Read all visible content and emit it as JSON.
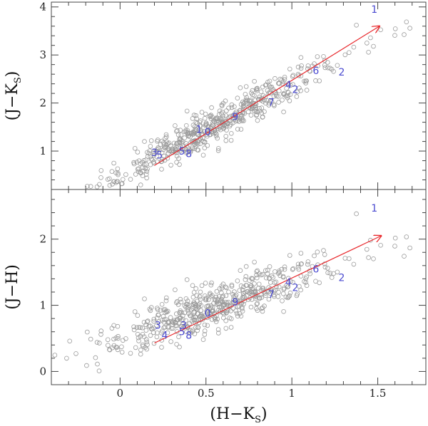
{
  "chart_data": [
    {
      "type": "scatter",
      "panel": "top",
      "ylabel": {
        "main": "(J−K",
        "sub": "S",
        "close": ")"
      },
      "xlim": [
        -0.4,
        1.78
      ],
      "ylim": [
        0.2,
        4.1
      ],
      "yticks": [
        1,
        2,
        3,
        4
      ],
      "ytick_labels": [
        "1",
        "2",
        "3",
        "4"
      ],
      "vector": {
        "from": [
          0.2,
          0.7
        ],
        "to": [
          1.51,
          3.6
        ],
        "color": "#e8262a"
      },
      "labeled_points": [
        {
          "label": "1",
          "x": 1.48,
          "y": 3.95
        },
        {
          "label": "2",
          "x": 1.29,
          "y": 2.65
        },
        {
          "label": "6",
          "x": 1.14,
          "y": 2.68
        },
        {
          "label": "2",
          "x": 1.02,
          "y": 2.28
        },
        {
          "label": "4",
          "x": 0.98,
          "y": 2.38
        },
        {
          "label": "7",
          "x": 0.88,
          "y": 2.02
        },
        {
          "label": "9",
          "x": 0.67,
          "y": 1.72
        },
        {
          "label": "0",
          "x": 0.51,
          "y": 1.4
        },
        {
          "label": "1",
          "x": 0.46,
          "y": 1.45
        },
        {
          "label": "8",
          "x": 0.4,
          "y": 0.95
        },
        {
          "label": "5",
          "x": 0.36,
          "y": 1.0
        },
        {
          "label": "5",
          "x": 0.23,
          "y": 0.92
        },
        {
          "label": "3",
          "x": 0.2,
          "y": 0.97
        }
      ]
    },
    {
      "type": "scatter",
      "panel": "bottom",
      "xlabel": {
        "main": "(H−K",
        "sub": "S",
        "close": ")"
      },
      "ylabel": {
        "main": "(J−H)",
        "sub": "",
        "close": ""
      },
      "xlim": [
        -0.4,
        1.78
      ],
      "ylim": [
        -0.2,
        2.75
      ],
      "xticks": [
        0,
        0.5,
        1,
        1.5
      ],
      "xtick_labels": [
        "0",
        "0.5",
        "1",
        "1.5"
      ],
      "yticks": [
        0,
        1,
        2
      ],
      "ytick_labels": [
        "0",
        "1",
        "2"
      ],
      "vector": {
        "from": [
          0.2,
          0.43
        ],
        "to": [
          1.52,
          2.05
        ],
        "color": "#e8262a"
      },
      "labeled_points": [
        {
          "label": "1",
          "x": 1.48,
          "y": 2.47
        },
        {
          "label": "2",
          "x": 1.29,
          "y": 1.42
        },
        {
          "label": "6",
          "x": 1.14,
          "y": 1.55
        },
        {
          "label": "2",
          "x": 1.02,
          "y": 1.27
        },
        {
          "label": "4",
          "x": 0.98,
          "y": 1.35
        },
        {
          "label": "7",
          "x": 0.88,
          "y": 1.17
        },
        {
          "label": "9",
          "x": 0.67,
          "y": 1.05
        },
        {
          "label": "0",
          "x": 0.51,
          "y": 0.88
        },
        {
          "label": "8",
          "x": 0.4,
          "y": 0.55
        },
        {
          "label": "5",
          "x": 0.36,
          "y": 0.6
        },
        {
          "label": "3",
          "x": 0.37,
          "y": 0.7
        },
        {
          "label": "4",
          "x": 0.26,
          "y": 0.55
        },
        {
          "label": "3",
          "x": 0.22,
          "y": 0.7
        }
      ]
    }
  ],
  "colors": {
    "points": "#9a9a9a",
    "labels": "#4a4ad0",
    "vector": "#e8262a",
    "axes": "#444444"
  }
}
